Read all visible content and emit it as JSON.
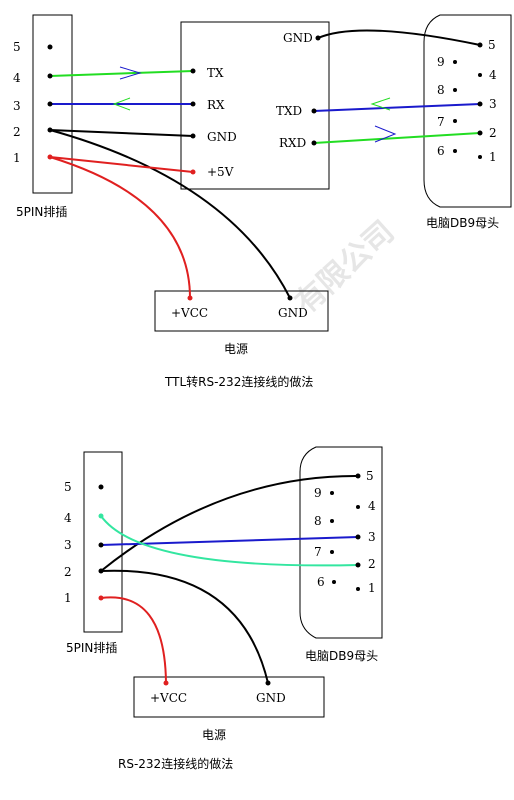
{
  "colors": {
    "black": "#000000",
    "green": "#22dd22",
    "blue": "#1a1acc",
    "red": "#e02020",
    "teal": "#33e6a0"
  },
  "watermark": "有限公司",
  "diagram1": {
    "header_pins": [
      "5",
      "4",
      "3",
      "2",
      "1"
    ],
    "header_label": "5PIN排插",
    "module_pins_left": [
      "TX",
      "RX",
      "GND",
      "+5V"
    ],
    "module_pins_right": [
      "GND",
      "TXD",
      "RXD"
    ],
    "db9_pins": [
      "5",
      "9",
      "4",
      "8",
      "3",
      "7",
      "2",
      "6",
      "1"
    ],
    "db9_label": "电脑DB9母头",
    "power_vcc": "+VCC",
    "power_gnd": "GND",
    "power_label": "电源",
    "caption": "TTL转RS-232连接线的做法"
  },
  "diagram2": {
    "header_pins": [
      "5",
      "4",
      "3",
      "2",
      "1"
    ],
    "header_label": "5PIN排插",
    "db9_pins": [
      "5",
      "9",
      "4",
      "8",
      "3",
      "7",
      "2",
      "6",
      "1"
    ],
    "db9_label": "电脑DB9母头",
    "power_vcc": "+VCC",
    "power_gnd": "GND",
    "power_label": "电源",
    "caption": "RS-232连接线的做法"
  }
}
